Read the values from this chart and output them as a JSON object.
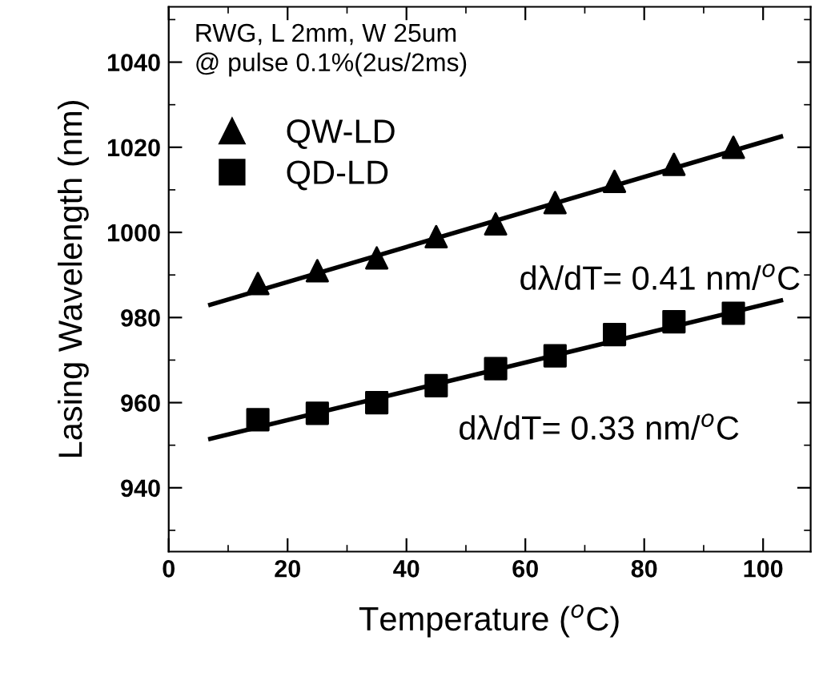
{
  "chart_data": {
    "type": "scatter",
    "xlabel": "Temperature ($^{o}$C)",
    "ylabel": "Lasing Wavelength (nm)",
    "xlim": [
      0,
      108
    ],
    "ylim": [
      925,
      1053
    ],
    "xticks": [
      0,
      20,
      40,
      60,
      80,
      100
    ],
    "yticks": [
      940,
      960,
      980,
      1000,
      1020,
      1040
    ],
    "grid": false,
    "legend": "top left",
    "series": [
      {
        "name": "QW-LD",
        "color": "#000000",
        "marker": "triangle",
        "x": [
          15,
          25,
          35,
          45,
          55,
          65,
          75,
          85,
          95
        ],
        "values": [
          988,
          991,
          994,
          999,
          1002,
          1007,
          1012,
          1016,
          1020
        ]
      },
      {
        "name": "QD-LD",
        "color": "#000000",
        "marker": "square",
        "x": [
          15,
          25,
          35,
          45,
          55,
          65,
          75,
          85,
          95
        ],
        "values": [
          956,
          957.5,
          960,
          964,
          968,
          971,
          976,
          979,
          981
        ]
      },
      {
        "type": "line",
        "color": "#000000",
        "marker": "none",
        "x": [
          7,
          103
        ],
        "values": [
          983,
          1022.5
        ]
      },
      {
        "type": "line",
        "color": "#000000",
        "marker": "none",
        "x": [
          7,
          103
        ],
        "values": [
          951.5,
          984
        ]
      }
    ],
    "annotations": [
      "RWG, L 2mm, W 25um\n@ pulse 0.1%(2us/2ms)",
      "dλ/dT= 0.41 nm/$^{o}$C",
      "dλ/dT= 0.33 nm/$^{o}$C"
    ]
  }
}
